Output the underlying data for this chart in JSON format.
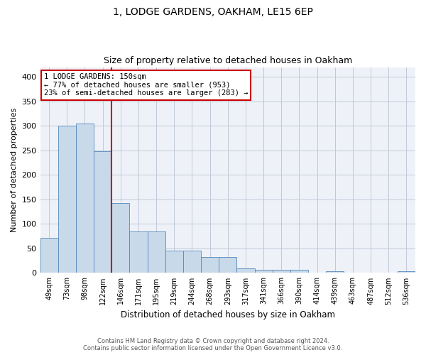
{
  "title1": "1, LODGE GARDENS, OAKHAM, LE15 6EP",
  "title2": "Size of property relative to detached houses in Oakham",
  "xlabel": "Distribution of detached houses by size in Oakham",
  "ylabel": "Number of detached properties",
  "categories": [
    "49sqm",
    "73sqm",
    "98sqm",
    "122sqm",
    "146sqm",
    "171sqm",
    "195sqm",
    "219sqm",
    "244sqm",
    "268sqm",
    "293sqm",
    "317sqm",
    "341sqm",
    "366sqm",
    "390sqm",
    "414sqm",
    "439sqm",
    "463sqm",
    "487sqm",
    "512sqm",
    "536sqm"
  ],
  "values": [
    72,
    300,
    305,
    248,
    143,
    84,
    84,
    45,
    45,
    33,
    33,
    9,
    6,
    6,
    6,
    0,
    3,
    0,
    0,
    0,
    3
  ],
  "bar_color": "#c8d9ea",
  "bar_edge_color": "#5588bb",
  "highlight_index": 4,
  "red_line_color": "#cc0000",
  "ylim": [
    0,
    420
  ],
  "yticks": [
    0,
    50,
    100,
    150,
    200,
    250,
    300,
    350,
    400
  ],
  "annotation_text": "1 LODGE GARDENS: 150sqm\n← 77% of detached houses are smaller (953)\n23% of semi-detached houses are larger (283) →",
  "annotation_box_color": "#ffffff",
  "annotation_box_edge": "#cc0000",
  "footer1": "Contains HM Land Registry data © Crown copyright and database right 2024.",
  "footer2": "Contains public sector information licensed under the Open Government Licence v3.0.",
  "bg_color": "#eef2f8",
  "grid_color": "#c0c8d8"
}
